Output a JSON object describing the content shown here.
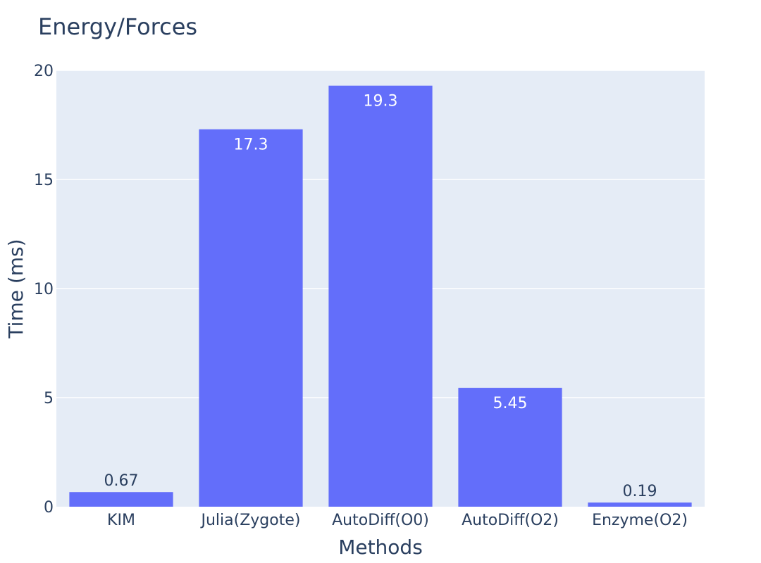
{
  "chart_data": {
    "type": "bar",
    "title": "Energy/Forces",
    "xlabel": "Methods",
    "ylabel": "Time (ms)",
    "categories": [
      "KIM",
      "Julia(Zygote)",
      "AutoDiff(O0)",
      "AutoDiff(O2)",
      "Enzyme(O2)"
    ],
    "values": [
      0.67,
      17.3,
      19.3,
      5.45,
      0.19
    ],
    "value_labels": [
      "0.67",
      "17.3",
      "19.3",
      "5.45",
      "0.19"
    ],
    "ylim": [
      0,
      20
    ],
    "yticks": [
      0,
      5,
      10,
      15,
      20
    ],
    "ytick_labels": [
      "0",
      "5",
      "10",
      "15",
      "20"
    ],
    "grid": true,
    "colors": {
      "bar": "#636efa",
      "plot_bg": "#e5ecf6",
      "grid": "#ffffff",
      "text": "#2a3f5f",
      "label_inside": "#ffffff"
    }
  }
}
